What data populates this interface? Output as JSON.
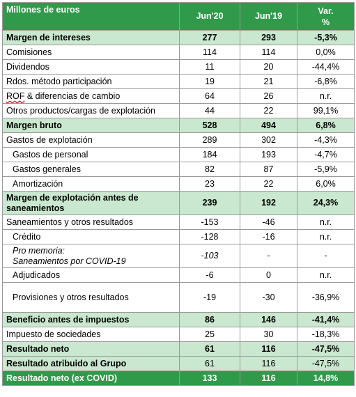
{
  "header": {
    "col0": "Millones de euros",
    "col1": "Jun'20",
    "col2": "Jun'19",
    "col3": "Var.\n%"
  },
  "rows": [
    {
      "label": "Margen de intereses",
      "v1": "277",
      "v2": "293",
      "v3": "-5,3%"
    },
    {
      "label": "Comisiones",
      "v1": "114",
      "v2": "114",
      "v3": "0,0%"
    },
    {
      "label": "Dividendos",
      "v1": "11",
      "v2": "20",
      "v3": "-44,4%"
    },
    {
      "label": "Rdos. método participación",
      "v1": "19",
      "v2": "21",
      "v3": "-6,8%"
    },
    {
      "label_a": "ROF",
      "label_b": " & diferencias de cambio",
      "v1": "64",
      "v2": "26",
      "v3": "n.r."
    },
    {
      "label": "Otros productos/cargas de explotación",
      "v1": "44",
      "v2": "22",
      "v3": "99,1%"
    },
    {
      "label": "Margen bruto",
      "v1": "528",
      "v2": "494",
      "v3": "6,8%"
    },
    {
      "label": "Gastos de explotación",
      "v1": "289",
      "v2": "302",
      "v3": "-4,3%"
    },
    {
      "label": "Gastos de personal",
      "v1": "184",
      "v2": "193",
      "v3": "-4,7%"
    },
    {
      "label": "Gastos generales",
      "v1": "82",
      "v2": "87",
      "v3": "-5,9%"
    },
    {
      "label": "Amortización",
      "v1": "23",
      "v2": "22",
      "v3": "6,0%"
    },
    {
      "label": "Margen de explotación antes de saneamientos",
      "v1": "239",
      "v2": "192",
      "v3": "24,3%"
    },
    {
      "label": "Saneamientos y otros resultados",
      "v1": "-153",
      "v2": "-46",
      "v3": "n.r."
    },
    {
      "label": "Crédito",
      "v1": "-128",
      "v2": "-16",
      "v3": "n.r."
    },
    {
      "label_a": "Pro memoria:",
      "label_b": "Saneamientos por COVID-19",
      "v1": "-103",
      "v2": "-",
      "v3": "-"
    },
    {
      "label": "Adjudicados",
      "v1": "-6",
      "v2": "0",
      "v3": "n.r."
    },
    {
      "label": "Provisiones y otros resultados",
      "v1": "-19",
      "v2": "-30",
      "v3": "-36,9%"
    },
    {
      "label": "Beneficio antes de impuestos",
      "v1": "86",
      "v2": "146",
      "v3": "-41,4%"
    },
    {
      "label": "Impuesto de sociedades",
      "v1": "25",
      "v2": "30",
      "v3": "-18,3%"
    },
    {
      "label": "Resultado neto",
      "v1": "61",
      "v2": "116",
      "v3": "-47,5%"
    },
    {
      "label": "Resultado atribuido al Grupo",
      "v1": "61",
      "v2": "116",
      "v3": "-47,5%"
    },
    {
      "label": "Resultado neto (ex COVID)",
      "v1": "133",
      "v2": "116",
      "v3": "14,8%"
    }
  ]
}
